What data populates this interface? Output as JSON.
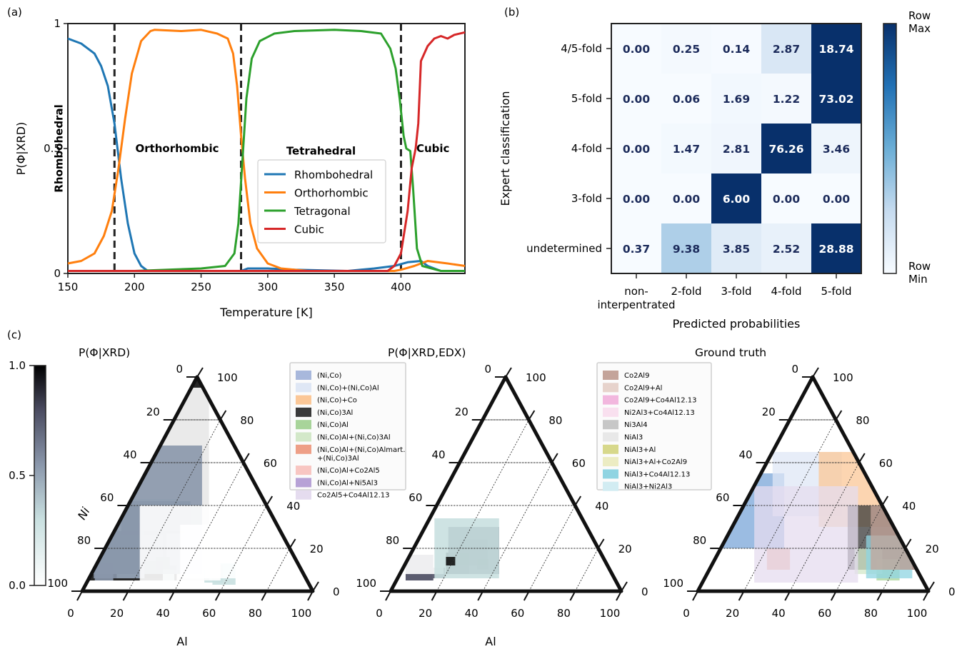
{
  "panel_labels": {
    "a": "(a)",
    "b": "(b)",
    "c": "(c)"
  },
  "chart_data": [
    {
      "type": "line",
      "panel": "(a)",
      "xlabel": "Temperature [K]",
      "ylabel": "P(Φ|XRD)",
      "xlim": [
        150,
        448
      ],
      "ylim": [
        0,
        1
      ],
      "xticks": [
        150,
        200,
        250,
        300,
        350,
        400
      ],
      "yticks": [
        {
          "v": 0,
          "t": "0"
        },
        {
          "v": 0.5,
          "t": "0.5"
        },
        {
          "v": 1,
          "t": "1"
        }
      ],
      "legend_position": "center-right",
      "transitions": [
        185,
        280,
        400
      ],
      "phase_regions": [
        {
          "label": "Rhombohedral",
          "x": 163,
          "y": 0.5,
          "vertical": true
        },
        {
          "label": "Orthorhombic",
          "x": 232,
          "y": 0.5,
          "vertical": false
        },
        {
          "label": "Tetrahedral",
          "x": 340,
          "y": 0.49,
          "vertical": false
        },
        {
          "label": "Cubic",
          "x": 424,
          "y": 0.5,
          "vertical": false
        }
      ],
      "series": [
        {
          "name": "Rhombohedral",
          "color": "#1f77b4",
          "points": [
            [
              150,
              0.94
            ],
            [
              160,
              0.92
            ],
            [
              170,
              0.88
            ],
            [
              175,
              0.83
            ],
            [
              180,
              0.75
            ],
            [
              185,
              0.6
            ],
            [
              190,
              0.38
            ],
            [
              195,
              0.2
            ],
            [
              200,
              0.08
            ],
            [
              205,
              0.03
            ],
            [
              210,
              0.01
            ],
            [
              215,
              0.01
            ],
            [
              280,
              0.01
            ],
            [
              285,
              0.02
            ],
            [
              300,
              0.02
            ],
            [
              320,
              0.015
            ],
            [
              360,
              0.01
            ],
            [
              380,
              0.02
            ],
            [
              395,
              0.03
            ],
            [
              405,
              0.045
            ],
            [
              415,
              0.05
            ],
            [
              420,
              0.03
            ],
            [
              430,
              0.01
            ],
            [
              448,
              0.01
            ]
          ]
        },
        {
          "name": "Orthorhombic",
          "color": "#ff7f0e",
          "points": [
            [
              150,
              0.04
            ],
            [
              160,
              0.05
            ],
            [
              170,
              0.08
            ],
            [
              177,
              0.15
            ],
            [
              183,
              0.25
            ],
            [
              188,
              0.42
            ],
            [
              193,
              0.62
            ],
            [
              198,
              0.8
            ],
            [
              205,
              0.93
            ],
            [
              212,
              0.97
            ],
            [
              215,
              0.975
            ],
            [
              235,
              0.97
            ],
            [
              250,
              0.975
            ],
            [
              262,
              0.96
            ],
            [
              270,
              0.94
            ],
            [
              274,
              0.88
            ],
            [
              277,
              0.75
            ],
            [
              280,
              0.55
            ],
            [
              283,
              0.38
            ],
            [
              287,
              0.2
            ],
            [
              292,
              0.1
            ],
            [
              300,
              0.04
            ],
            [
              310,
              0.02
            ],
            [
              330,
              0.01
            ],
            [
              380,
              0.01
            ],
            [
              395,
              0.01
            ],
            [
              400,
              0.015
            ],
            [
              410,
              0.03
            ],
            [
              420,
              0.05
            ],
            [
              435,
              0.04
            ],
            [
              448,
              0.03
            ]
          ]
        },
        {
          "name": "Tetragonal",
          "color": "#2ca02c",
          "points": [
            [
              150,
              0.01
            ],
            [
              200,
              0.01
            ],
            [
              250,
              0.02
            ],
            [
              268,
              0.03
            ],
            [
              275,
              0.08
            ],
            [
              278,
              0.2
            ],
            [
              281,
              0.45
            ],
            [
              284,
              0.7
            ],
            [
              288,
              0.86
            ],
            [
              294,
              0.93
            ],
            [
              305,
              0.96
            ],
            [
              320,
              0.97
            ],
            [
              350,
              0.975
            ],
            [
              370,
              0.97
            ],
            [
              385,
              0.96
            ],
            [
              392,
              0.9
            ],
            [
              396,
              0.82
            ],
            [
              399,
              0.7
            ],
            [
              402,
              0.55
            ],
            [
              404,
              0.5
            ],
            [
              407,
              0.49
            ],
            [
              409,
              0.35
            ],
            [
              412,
              0.1
            ],
            [
              416,
              0.03
            ],
            [
              430,
              0.01
            ],
            [
              448,
              0.01
            ]
          ]
        },
        {
          "name": "Cubic",
          "color": "#d62728",
          "points": [
            [
              150,
              0.01
            ],
            [
              390,
              0.01
            ],
            [
              395,
              0.03
            ],
            [
              400,
              0.08
            ],
            [
              405,
              0.25
            ],
            [
              408,
              0.42
            ],
            [
              411,
              0.5
            ],
            [
              413,
              0.6
            ],
            [
              415,
              0.85
            ],
            [
              420,
              0.91
            ],
            [
              425,
              0.94
            ],
            [
              430,
              0.95
            ],
            [
              435,
              0.94
            ],
            [
              440,
              0.955
            ],
            [
              448,
              0.965
            ]
          ]
        }
      ]
    },
    {
      "type": "heatmap",
      "panel": "(b)",
      "xlabel": "Predicted probabilities",
      "ylabel": "Expert classification",
      "x_categories": [
        "non-\ninterpentrated",
        "2-fold",
        "3-fold",
        "4-fold",
        "5-fold"
      ],
      "y_categories": [
        "4/5-fold",
        "5-fold",
        "4-fold",
        "3-fold",
        "undetermined"
      ],
      "values": [
        [
          0.0,
          0.25,
          0.14,
          2.87,
          18.74
        ],
        [
          0.0,
          0.06,
          1.69,
          1.22,
          73.02
        ],
        [
          0.0,
          1.47,
          2.81,
          76.26,
          3.46
        ],
        [
          0.0,
          0.0,
          6.0,
          0.0,
          0.0
        ],
        [
          0.37,
          9.38,
          3.85,
          2.52,
          28.88
        ]
      ],
      "colorbar": {
        "top": "Row\nMax",
        "bottom": "Row\nMin",
        "colormap": "Blues"
      }
    },
    {
      "type": "ternary",
      "panel": "(c)",
      "colorbar": {
        "ticks": [
          "1.0",
          "0.5",
          "0.0"
        ],
        "range": [
          0,
          1
        ],
        "colormap": "bone_r"
      },
      "axis_ticks_left": [
        "0",
        "20",
        "40",
        "60",
        "80",
        "100"
      ],
      "axis_ticks_right": [
        "100",
        "80",
        "60",
        "40",
        "20",
        "0"
      ],
      "axis_ticks_bottom": [
        "0",
        "20",
        "40",
        "60",
        "80",
        "100"
      ],
      "axis_labels": {
        "left": "Ni",
        "bottom": "Al"
      },
      "plots": [
        {
          "title": "P(Φ|XRD)",
          "show_left_label": true,
          "show_bottom_label": true
        },
        {
          "title": "P(Φ|XRD,EDX)",
          "show_left_label": false,
          "show_bottom_label": true
        },
        {
          "title": "Ground truth",
          "show_left_label": false,
          "show_bottom_label": false
        }
      ],
      "legend_1": [
        {
          "label": "(Ni,Co)",
          "color": "#a8b8dc"
        },
        {
          "label": "(Ni,Co)+(Ni,Co)Al",
          "color": "#dfe7f5"
        },
        {
          "label": "(Ni,Co)+Co",
          "color": "#fbc797"
        },
        {
          "label": "(Ni,Co)3Al",
          "color": "#3a3a3a"
        },
        {
          "label": "(Ni,Co)Al",
          "color": "#a8d49a"
        },
        {
          "label": "(Ni,Co)Al+(Ni,Co)3Al",
          "color": "#d3e8c9"
        },
        {
          "label": "(Ni,Co)Al+(Ni,Co)Almart.\n+(Ni,Co)3Al",
          "color": "#ee9f87"
        },
        {
          "label": "(Ni,Co)Al+Co2Al5",
          "color": "#f8c6c2"
        },
        {
          "label": "(Ni,Co)Al+Ni5Al3",
          "color": "#b7a2d6"
        },
        {
          "label": "Co2Al5+Co4Al12.13",
          "color": "#e5dcef"
        }
      ],
      "legend_2": [
        {
          "label": "Co2Al9",
          "color": "#c4a49a"
        },
        {
          "label": "Co2Al9+Al",
          "color": "#e7d3cc"
        },
        {
          "label": "Co2Al9+Co4Al12.13",
          "color": "#f2b7de"
        },
        {
          "label": "Ni2Al3+Co4Al12.13",
          "color": "#f9e0ef"
        },
        {
          "label": "Ni3Al4",
          "color": "#c7c7c7"
        },
        {
          "label": "NiAl3",
          "color": "#e8e8e8"
        },
        {
          "label": "NiAl3+Al",
          "color": "#d7d88b"
        },
        {
          "label": "NiAl3+Al+Co2Al9",
          "color": "#ececc3"
        },
        {
          "label": "NiAl3+Co4Al12.13",
          "color": "#8fd4e2"
        },
        {
          "label": "NiAl3+Ni2Al3",
          "color": "#d2ecf2"
        }
      ]
    }
  ]
}
